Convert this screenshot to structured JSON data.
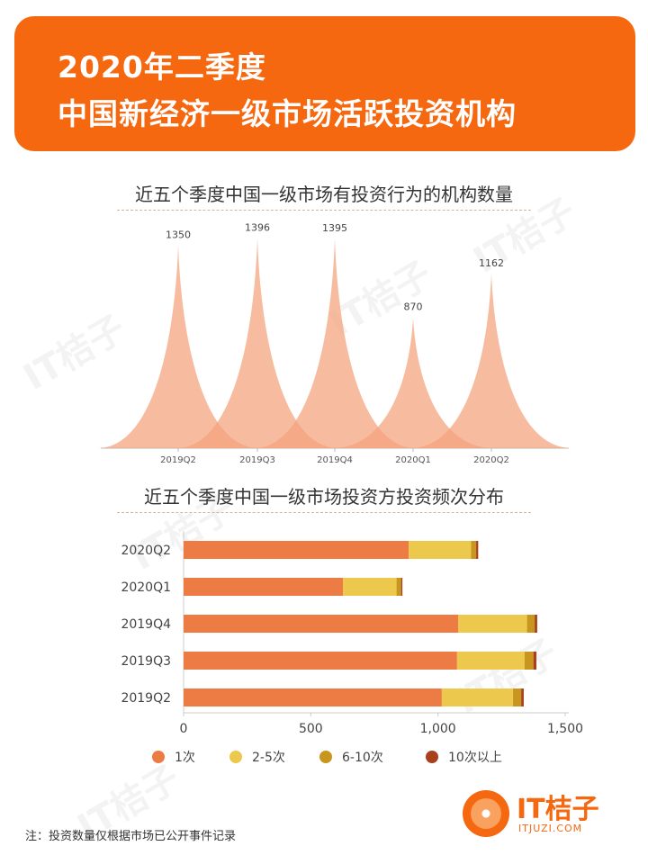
{
  "header": {
    "line1": "2020年二季度",
    "line2": "中国新经济一级市场活跃投资机构"
  },
  "watermark": "IT桔子",
  "chart_data": [
    {
      "type": "area",
      "title": "近五个季度中国一级市场有投资行为的机构数量",
      "categories": [
        "2019Q2",
        "2019Q3",
        "2019Q4",
        "2020Q1",
        "2020Q2"
      ],
      "values": [
        1350,
        1396,
        1395,
        870,
        1162
      ],
      "color": "#f4a27c"
    },
    {
      "type": "bar",
      "orientation": "horizontal",
      "stacked": true,
      "title": "近五个季度中国一级市场投资方投资频次分布",
      "categories": [
        "2020Q2",
        "2020Q1",
        "2019Q4",
        "2019Q3",
        "2019Q2"
      ],
      "series": [
        {
          "name": "1次",
          "color": "#ec7c44",
          "values": [
            885,
            627,
            1080,
            1075,
            1015
          ]
        },
        {
          "name": "2-5次",
          "color": "#ecc84c",
          "values": [
            245,
            210,
            270,
            265,
            280
          ]
        },
        {
          "name": "6-10次",
          "color": "#c8961e",
          "values": [
            20,
            18,
            30,
            35,
            32
          ]
        },
        {
          "name": "10次以上",
          "color": "#a8401c",
          "values": [
            8,
            5,
            10,
            12,
            10
          ]
        }
      ],
      "xlim": [
        0,
        1500
      ],
      "xticks": [
        "0",
        "500",
        "1,000",
        "1,500"
      ],
      "legend": "bottom"
    }
  ],
  "footer": {
    "note": "注：投资数量仅根据市场已公开事件记录",
    "logo_text": "IT桔子",
    "logo_sub": "ITJUZI.COM"
  }
}
